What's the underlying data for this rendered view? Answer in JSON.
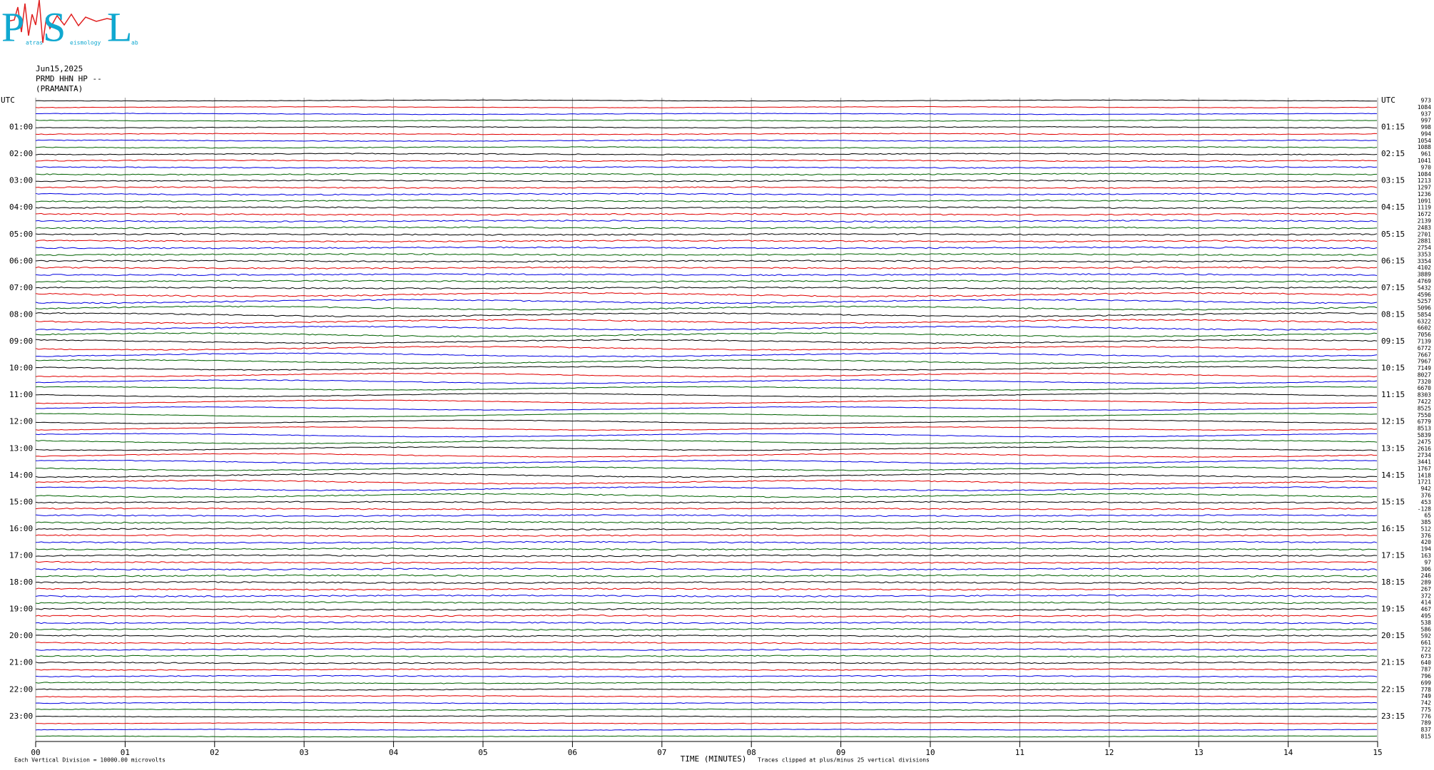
{
  "logo": {
    "letters": [
      "P",
      "S",
      "L"
    ],
    "words": [
      "atras",
      "eismology",
      "ab"
    ]
  },
  "header": {
    "date": "Jun15,2025",
    "station": "PRMD HHN HP --",
    "name": "(PRAMANTA)"
  },
  "left_labels": [
    "UTC",
    "01:00",
    "02:00",
    "03:00",
    "04:00",
    "05:00",
    "06:00",
    "07:00",
    "08:00",
    "09:00",
    "10:00",
    "11:00",
    "12:00",
    "13:00",
    "14:00",
    "15:00",
    "16:00",
    "17:00",
    "18:00",
    "19:00",
    "20:00",
    "21:00",
    "22:00",
    "23:00"
  ],
  "right_labels": [
    "UTC",
    "01:15",
    "02:15",
    "03:15",
    "04:15",
    "05:15",
    "06:15",
    "07:15",
    "08:15",
    "09:15",
    "10:15",
    "11:15",
    "12:15",
    "13:15",
    "14:15",
    "15:15",
    "16:15",
    "17:15",
    "18:15",
    "19:15",
    "20:15",
    "21:15",
    "22:15",
    "23:15"
  ],
  "trace_scales": [
    973,
    1084,
    937,
    997,
    998,
    994,
    1054,
    1088,
    961,
    1041,
    970,
    1084,
    1213,
    1297,
    1236,
    1091,
    1119,
    1672,
    2139,
    2483,
    2701,
    2881,
    2754,
    3353,
    3354,
    4102,
    3889,
    4769,
    5432,
    4596,
    5257,
    5096,
    5854,
    6322,
    6602,
    7056,
    7139,
    6772,
    7667,
    7967,
    7149,
    8027,
    7320,
    6670,
    8303,
    7422,
    8525,
    7550,
    6779,
    8513,
    5839,
    2475,
    2616,
    2734,
    3441,
    1767,
    1418,
    1721,
    942,
    376,
    453,
    -128,
    65,
    385,
    512,
    376,
    420,
    194,
    163,
    97,
    306,
    246,
    289,
    267,
    372,
    414,
    467,
    495,
    538,
    586,
    592,
    661,
    722,
    673,
    640,
    787,
    796,
    699,
    778,
    749,
    742,
    775,
    776,
    789,
    837,
    815
  ],
  "trace_colors": [
    "#000000",
    "#e00000",
    "#0000e0",
    "#006000"
  ],
  "x_ticks": [
    "00",
    "01",
    "02",
    "03",
    "04",
    "05",
    "06",
    "07",
    "08",
    "09",
    "10",
    "11",
    "12",
    "13",
    "14",
    "15"
  ],
  "footer": {
    "division": "Each Vertical Division = 10000.00 microvolts",
    "axis_title": "TIME (MINUTES)",
    "clip_note": "Traces clipped at plus/minus 25 vertical divisions"
  }
}
